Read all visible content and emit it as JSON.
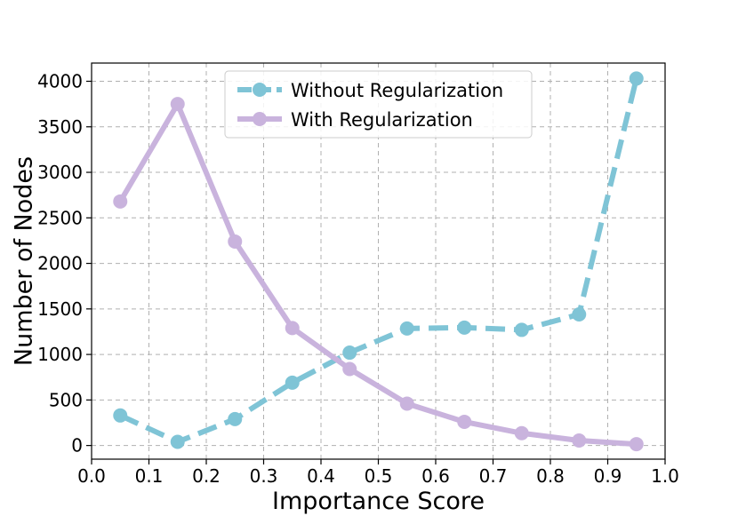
{
  "chart_data": {
    "type": "line",
    "xlabel": "Importance Score",
    "ylabel": "Number of Nodes",
    "xlim": [
      0.0,
      1.0
    ],
    "ylim": [
      -150,
      4200
    ],
    "xticks": [
      "0.0",
      "0.1",
      "0.2",
      "0.3",
      "0.4",
      "0.5",
      "0.6",
      "0.7",
      "0.8",
      "0.9",
      "1.0"
    ],
    "yticks": [
      "0",
      "500",
      "1000",
      "1500",
      "2000",
      "2500",
      "3000",
      "3500",
      "4000"
    ],
    "grid": true,
    "legend_position": "top-center",
    "x": [
      0.05,
      0.15,
      0.25,
      0.35,
      0.45,
      0.55,
      0.65,
      0.75,
      0.85,
      0.95
    ],
    "series": [
      {
        "name": "Without Regularization",
        "color": "#7fc4d6",
        "line_style": "dashed",
        "values": [
          330,
          40,
          290,
          690,
          1020,
          1285,
          1295,
          1270,
          1440,
          4030
        ]
      },
      {
        "name": "With Regularization",
        "color": "#c9b3dd",
        "line_style": "solid",
        "values": [
          2680,
          3750,
          2240,
          1290,
          840,
          460,
          260,
          135,
          55,
          15
        ]
      }
    ]
  }
}
